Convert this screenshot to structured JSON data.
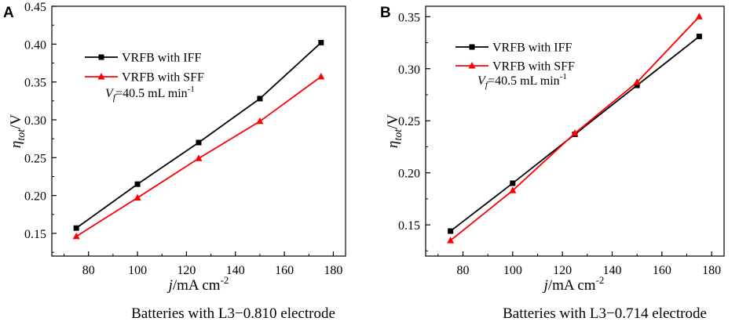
{
  "chart_data": [
    {
      "panel": "A",
      "type": "line",
      "xlabel_italic": "j",
      "xlabel_rest": "/mA cm",
      "xlabel_sup": "-2",
      "ylabel_sym": "η",
      "ylabel_sub": "tot",
      "ylabel_rest": "/V",
      "xlim": [
        65,
        185
      ],
      "ylim": [
        0.12,
        0.45
      ],
      "xticks": [
        80,
        100,
        120,
        140,
        160,
        180
      ],
      "yticks": [
        "0.15",
        "0.20",
        "0.25",
        "0.30",
        "0.35",
        "0.40",
        "0.45"
      ],
      "yticks_values": [
        0.15,
        0.2,
        0.25,
        0.3,
        0.35,
        0.4,
        0.45
      ],
      "series": [
        {
          "name": "VRFB with IFF",
          "color": "#000000",
          "marker": "square",
          "x": [
            75,
            100,
            125,
            150,
            175
          ],
          "y": [
            0.157,
            0.215,
            0.27,
            0.328,
            0.402
          ]
        },
        {
          "name": "VRFB with SFF",
          "color": "#ff0000",
          "marker": "triangle",
          "x": [
            75,
            100,
            125,
            150,
            175
          ],
          "y": [
            0.146,
            0.197,
            0.249,
            0.298,
            0.357
          ]
        }
      ],
      "annotation_italic": "V",
      "annotation_sub": "f",
      "annotation_rest": "=40.5 mL min",
      "annotation_sup": "-1",
      "caption": "Batteries with L3−0.810 electrode"
    },
    {
      "panel": "B",
      "type": "line",
      "xlabel_italic": "j",
      "xlabel_rest": "/mA cm",
      "xlabel_sup": "-2",
      "ylabel_sym": "η",
      "ylabel_sub": "tot",
      "ylabel_rest": "/V",
      "xlim": [
        65,
        185
      ],
      "ylim": [
        0.12,
        0.36
      ],
      "xticks": [
        80,
        100,
        120,
        140,
        160,
        180
      ],
      "yticks": [
        "0.15",
        "0.20",
        "0.25",
        "0.30",
        "0.35"
      ],
      "yticks_values": [
        0.15,
        0.2,
        0.25,
        0.3,
        0.35
      ],
      "series": [
        {
          "name": "VRFB with IFF",
          "color": "#000000",
          "marker": "square",
          "x": [
            75,
            100,
            125,
            150,
            175
          ],
          "y": [
            0.144,
            0.19,
            0.237,
            0.284,
            0.331
          ]
        },
        {
          "name": "VRFB with SFF",
          "color": "#ff0000",
          "marker": "triangle",
          "x": [
            75,
            100,
            125,
            150,
            175
          ],
          "y": [
            0.135,
            0.183,
            0.238,
            0.287,
            0.35
          ]
        }
      ],
      "annotation_italic": "V",
      "annotation_sub": "f",
      "annotation_rest": "=40.5 mL min",
      "annotation_sup": "-1",
      "caption": "Batteries with L3−0.714 electrode"
    }
  ]
}
